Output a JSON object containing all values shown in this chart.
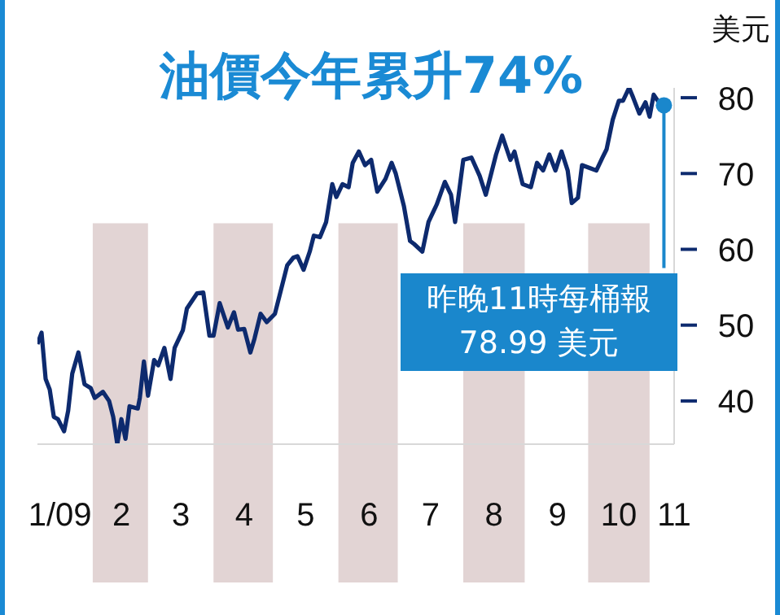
{
  "chart_data": {
    "type": "line",
    "title": "油價今年累升74%",
    "ylabel": "美元",
    "x": [
      "2009-01-05",
      "2009-01-07",
      "2009-01-09",
      "2009-01-11",
      "2009-01-13",
      "2009-01-15",
      "2009-01-18",
      "2009-01-20",
      "2009-01-22",
      "2009-01-25",
      "2009-01-28",
      "2009-01-31",
      "2009-02-02",
      "2009-02-06",
      "2009-02-09",
      "2009-02-11",
      "2009-02-13",
      "2009-02-15",
      "2009-02-17",
      "2009-02-19",
      "2009-02-23",
      "2009-02-24",
      "2009-02-26",
      "2009-02-28",
      "2009-03-03",
      "2009-03-05",
      "2009-03-08",
      "2009-03-11",
      "2009-03-13",
      "2009-03-17",
      "2009-03-19",
      "2009-03-24",
      "2009-03-27",
      "2009-03-30",
      "2009-04-01",
      "2009-04-04",
      "2009-04-08",
      "2009-04-11",
      "2009-04-13",
      "2009-04-16",
      "2009-04-19",
      "2009-04-21",
      "2009-04-24",
      "2009-04-27",
      "2009-05-01",
      "2009-05-04",
      "2009-05-07",
      "2009-05-10",
      "2009-05-12",
      "2009-05-15",
      "2009-05-18",
      "2009-05-20",
      "2009-05-23",
      "2009-05-26",
      "2009-05-29",
      "2009-05-31",
      "2009-06-03",
      "2009-06-06",
      "2009-06-08",
      "2009-06-11",
      "2009-06-14",
      "2009-06-17",
      "2009-06-20",
      "2009-06-24",
      "2009-06-27",
      "2009-06-29",
      "2009-07-03",
      "2009-07-06",
      "2009-07-08",
      "2009-07-12",
      "2009-07-15",
      "2009-07-19",
      "2009-07-23",
      "2009-07-26",
      "2009-07-28",
      "2009-08-01",
      "2009-08-05",
      "2009-08-09",
      "2009-08-12",
      "2009-08-17",
      "2009-08-20",
      "2009-08-24",
      "2009-08-26",
      "2009-08-30",
      "2009-09-03",
      "2009-09-06",
      "2009-09-09",
      "2009-09-12",
      "2009-09-15",
      "2009-09-18",
      "2009-09-21",
      "2009-09-23",
      "2009-09-26",
      "2009-09-28",
      "2009-10-02",
      "2009-10-05",
      "2009-10-08",
      "2009-10-10",
      "2009-10-13",
      "2009-10-16",
      "2009-10-18",
      "2009-10-21",
      "2009-10-23",
      "2009-10-26",
      "2009-10-29",
      "2009-10-31",
      "2009-11-02",
      "2009-11-04",
      "2009-11-07"
    ],
    "series": [
      {
        "color": "#0d2a6e",
        "values": [
          47.5,
          49,
          42.9,
          41.5,
          37.9,
          37.6,
          36,
          38.7,
          43.6,
          46.4,
          42.2,
          41.7,
          40.4,
          41.2,
          40,
          37.9,
          34.3,
          37.6,
          35,
          39.3,
          39,
          40.4,
          45.2,
          40.7,
          45.4,
          44.7,
          47,
          42.9,
          47,
          49.3,
          52.2,
          54.2,
          54.3,
          48.6,
          48.6,
          52.9,
          49.7,
          51.7,
          49.4,
          49.5,
          46.4,
          48.2,
          51.5,
          50.4,
          51.5,
          54.7,
          57.9,
          58.9,
          59.1,
          57.3,
          59.7,
          61.8,
          61.6,
          63.6,
          68.6,
          66.9,
          68.6,
          68.2,
          71.4,
          72.9,
          71.1,
          71.8,
          67.6,
          69.3,
          71.4,
          70,
          65.7,
          61.1,
          60.7,
          59.7,
          63.6,
          65.9,
          68.9,
          67.2,
          63.6,
          71.8,
          72.1,
          69.7,
          67.2,
          72.5,
          75,
          71.8,
          72.9,
          68.6,
          68.2,
          71.4,
          70.4,
          72.5,
          70.4,
          72.9,
          70.4,
          66.1,
          66.8,
          71.1,
          70.7,
          70.4,
          72.1,
          73.2,
          77.1,
          79.6,
          79.6,
          81.3,
          80,
          77.9,
          79.4,
          77.5,
          80.4,
          79.6,
          79
        ]
      }
    ],
    "xticks": [
      {
        "value": "2009-01-16",
        "label": "1/09"
      },
      {
        "value": "2009-02-15",
        "label": "2"
      },
      {
        "value": "2009-03-16",
        "label": "3"
      },
      {
        "value": "2009-04-16",
        "label": "4"
      },
      {
        "value": "2009-05-16",
        "label": "5"
      },
      {
        "value": "2009-06-16",
        "label": "6"
      },
      {
        "value": "2009-07-16",
        "label": "7"
      },
      {
        "value": "2009-08-16",
        "label": "8"
      },
      {
        "value": "2009-09-16",
        "label": "9"
      },
      {
        "value": "2009-10-16",
        "label": "10"
      },
      {
        "value": "2009-11-12",
        "label": "11"
      }
    ],
    "xlim": [
      "2009-01-05",
      "2009-11-12"
    ],
    "ylim": [
      34.3,
      81.3
    ],
    "yticks": [
      40,
      50,
      60,
      70,
      80
    ],
    "bands": [
      {
        "axis": "x",
        "from": "2009-02-01",
        "to": "2009-02-28",
        "color": "#e2d4d4"
      },
      {
        "axis": "x",
        "from": "2009-04-01",
        "to": "2009-04-30",
        "color": "#e2d4d4"
      },
      {
        "axis": "x",
        "from": "2009-06-01",
        "to": "2009-06-30",
        "color": "#e2d4d4"
      },
      {
        "axis": "x",
        "from": "2009-08-01",
        "to": "2009-08-31",
        "color": "#e2d4d4"
      },
      {
        "axis": "x",
        "from": "2009-10-01",
        "to": "2009-10-31",
        "color": "#e2d4d4"
      }
    ],
    "annotations": [
      {
        "text": "昨晚11時每桶報\n78.99 美元",
        "x": "2009-11-07",
        "y": 79
      }
    ]
  }
}
